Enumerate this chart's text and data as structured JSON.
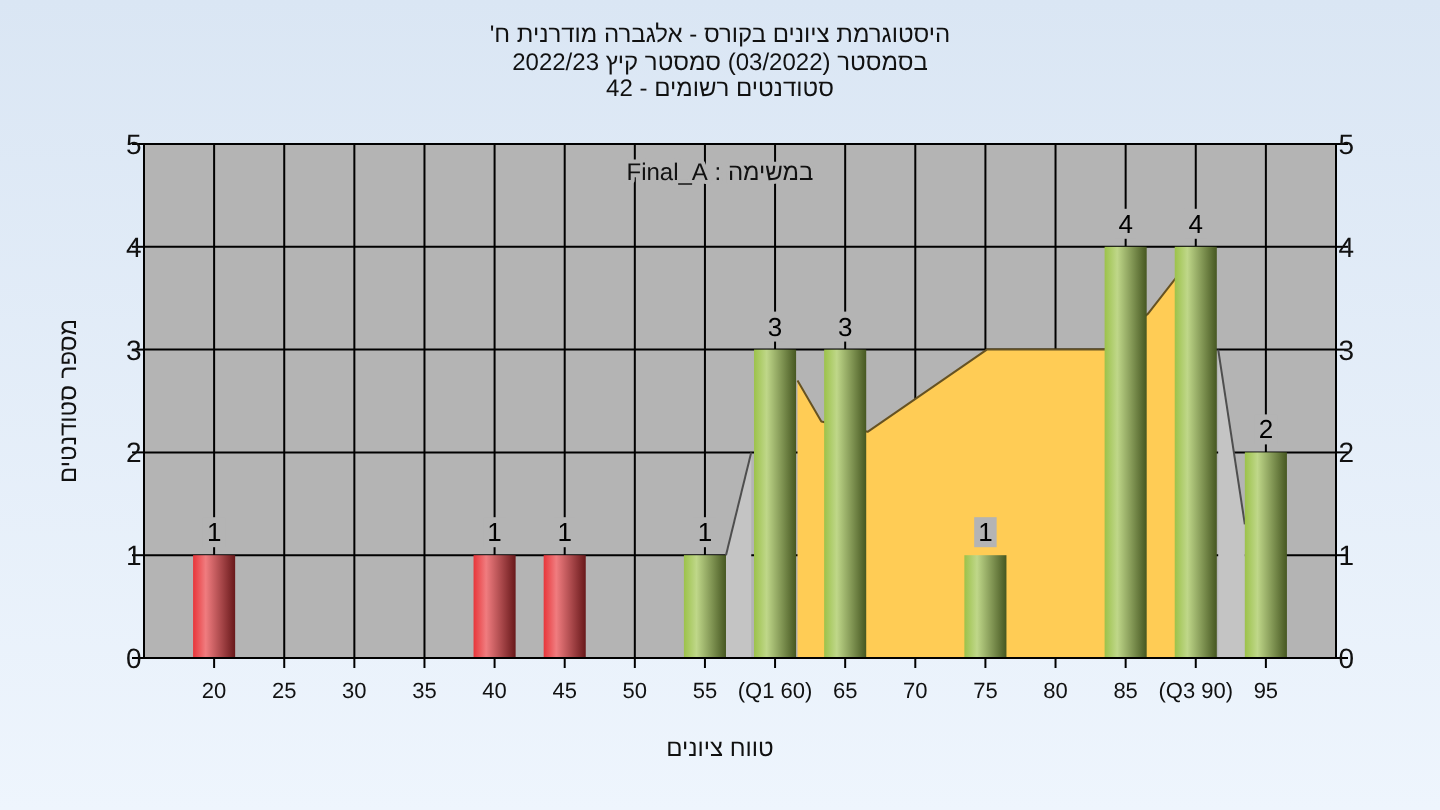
{
  "chart_data": {
    "type": "bar",
    "title": "היסטוגרמת ציונים בקורס - אלגברה מודרנית ח'",
    "subtitle": "בסמסטר (03/2022) סמסטר קיץ 2022/23",
    "annotations": [
      "סטודנטים רשומים - 42",
      "במשימה : Final_A"
    ],
    "xlabel": "טווח ציונים",
    "ylabel": "מספר סטודנטים",
    "x": [
      20,
      40,
      45,
      55,
      60,
      65,
      75,
      85,
      90,
      95
    ],
    "series": [
      {
        "type": "area",
        "color": "#c4c4c4",
        "x": [
          56.5,
          58.3
        ],
        "values": [
          1,
          2
        ]
      },
      {
        "type": "area",
        "color": "#c4c4c4",
        "x": [
          91.6,
          93.5
        ],
        "values": [
          3,
          1.3
        ]
      },
      {
        "type": "area",
        "color": "#ffcc55",
        "x": [
          61.6,
          63.3,
          66.6,
          75.1,
          83.5,
          86.6,
          88.6
        ],
        "values": [
          2.7,
          2.3,
          2.2,
          3,
          3,
          3.35,
          3.7
        ]
      },
      {
        "values": [
          1,
          1,
          1,
          1,
          3,
          3,
          1,
          4,
          4,
          2
        ],
        "value_labels": [
          "1",
          "1",
          "1",
          "1",
          "3",
          "3",
          "1",
          "4",
          "4",
          "2"
        ],
        "colors": [
          "#e8363a",
          "#e8363a",
          "#e8363a",
          "#9cc24a",
          "#9cc24a",
          "#9cc24a",
          "#9cc24a",
          "#9cc24a",
          "#9cc24a",
          "#9cc24a"
        ]
      }
    ],
    "xlim": [
      15,
      100
    ],
    "xticks": [
      20,
      25,
      30,
      35,
      40,
      45,
      50,
      55,
      {
        "value": 60,
        "label": "(Q1 60)"
      },
      65,
      70,
      75,
      80,
      85,
      {
        "value": 90,
        "label": "(Q3 90)"
      },
      95
    ],
    "ylim": [
      0,
      5
    ],
    "yticks": [
      0,
      1,
      2,
      3,
      4,
      5
    ],
    "y2lim": [
      0,
      5
    ],
    "y2ticks": [
      0,
      1,
      2,
      3,
      4,
      5
    ],
    "grid": true
  }
}
